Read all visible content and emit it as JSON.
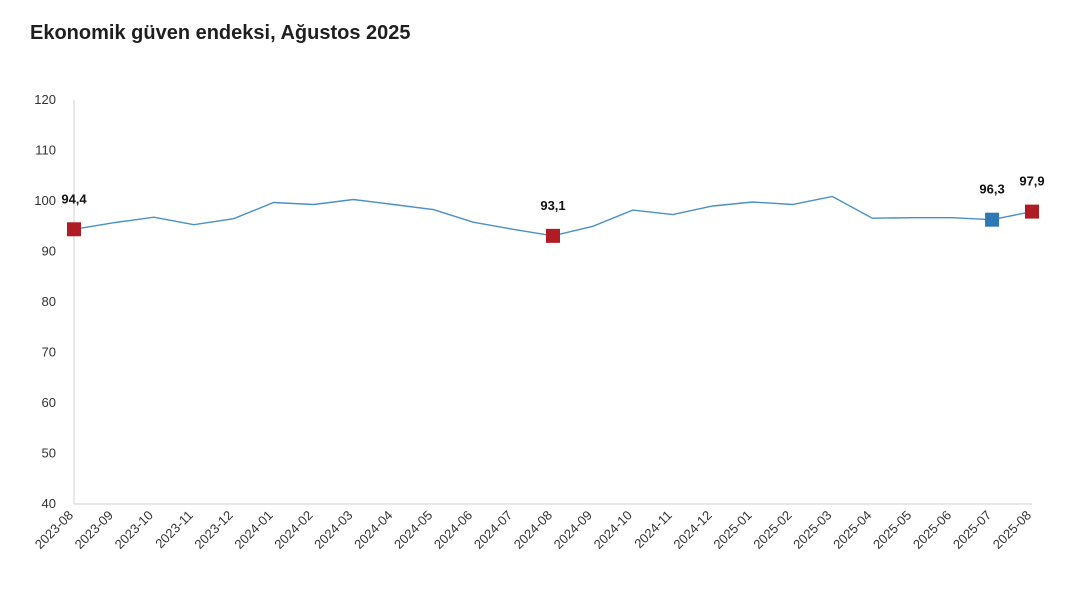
{
  "chart_data": {
    "type": "line",
    "title": "Ekonomik güven endeksi, Ağustos 2025",
    "xlabel": "",
    "ylabel": "",
    "ylim": [
      40,
      120
    ],
    "yticks": [
      "40",
      "50",
      "60",
      "70",
      "80",
      "90",
      "100",
      "110",
      "120"
    ],
    "grid": false,
    "x": [
      "2023-08",
      "2023-09",
      "2023-10",
      "2023-11",
      "2023-12",
      "2024-01",
      "2024-02",
      "2024-03",
      "2024-04",
      "2024-05",
      "2024-06",
      "2024-07",
      "2024-08",
      "2024-09",
      "2024-10",
      "2024-11",
      "2024-12",
      "2025-01",
      "2025-02",
      "2025-03",
      "2025-04",
      "2025-05",
      "2025-06",
      "2025-07",
      "2025-08"
    ],
    "series": [
      {
        "color": "#4a90c4",
        "values": [
          94.4,
          95.7,
          96.8,
          95.3,
          96.5,
          99.7,
          99.3,
          100.3,
          99.3,
          98.3,
          95.8,
          94.4,
          93.1,
          95.0,
          98.2,
          97.3,
          99.0,
          99.8,
          99.3,
          100.9,
          96.6,
          96.7,
          96.7,
          96.3,
          97.9
        ]
      }
    ],
    "highlights": [
      {
        "index": 0,
        "label": "94,4",
        "color": "#b01c23"
      },
      {
        "index": 12,
        "label": "93,1",
        "color": "#b01c23"
      },
      {
        "index": 23,
        "label": "96,3",
        "color": "#2e78b4"
      },
      {
        "index": 24,
        "label": "97,9",
        "color": "#b01c23"
      }
    ]
  }
}
